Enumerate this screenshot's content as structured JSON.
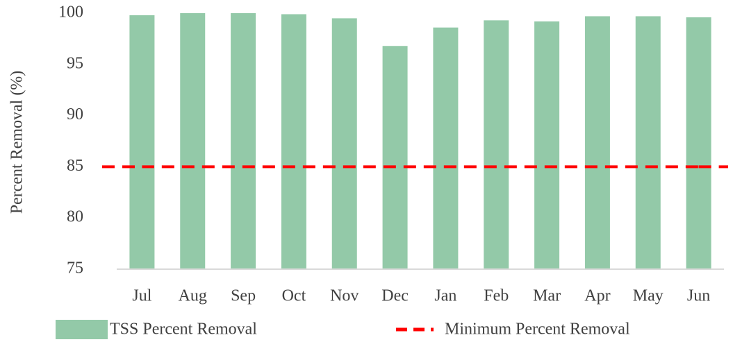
{
  "chart_data": {
    "type": "bar",
    "y_label": "Percent Removal (%)",
    "categories": [
      "Jul",
      "Aug",
      "Sep",
      "Oct",
      "Nov",
      "Dec",
      "Jan",
      "Feb",
      "Mar",
      "Apr",
      "May",
      "Jun"
    ],
    "series": [
      {
        "name": "TSS Percent Removal",
        "color": "#93c9a8",
        "values": [
          99.8,
          100,
          100,
          99.9,
          99.5,
          96.8,
          98.6,
          99.3,
          99.2,
          99.7,
          99.7,
          99.6
        ]
      },
      {
        "name": "Minimum Percent Removal",
        "color": "#ff0000",
        "type": "line",
        "dashed": true,
        "values": [
          85,
          85,
          85,
          85,
          85,
          85,
          85,
          85,
          85,
          85,
          85,
          85
        ]
      }
    ],
    "ylim": [
      75,
      100
    ],
    "yticks": [
      75,
      80,
      85,
      90,
      95,
      100
    ],
    "grid": false,
    "legend": "bottom"
  }
}
